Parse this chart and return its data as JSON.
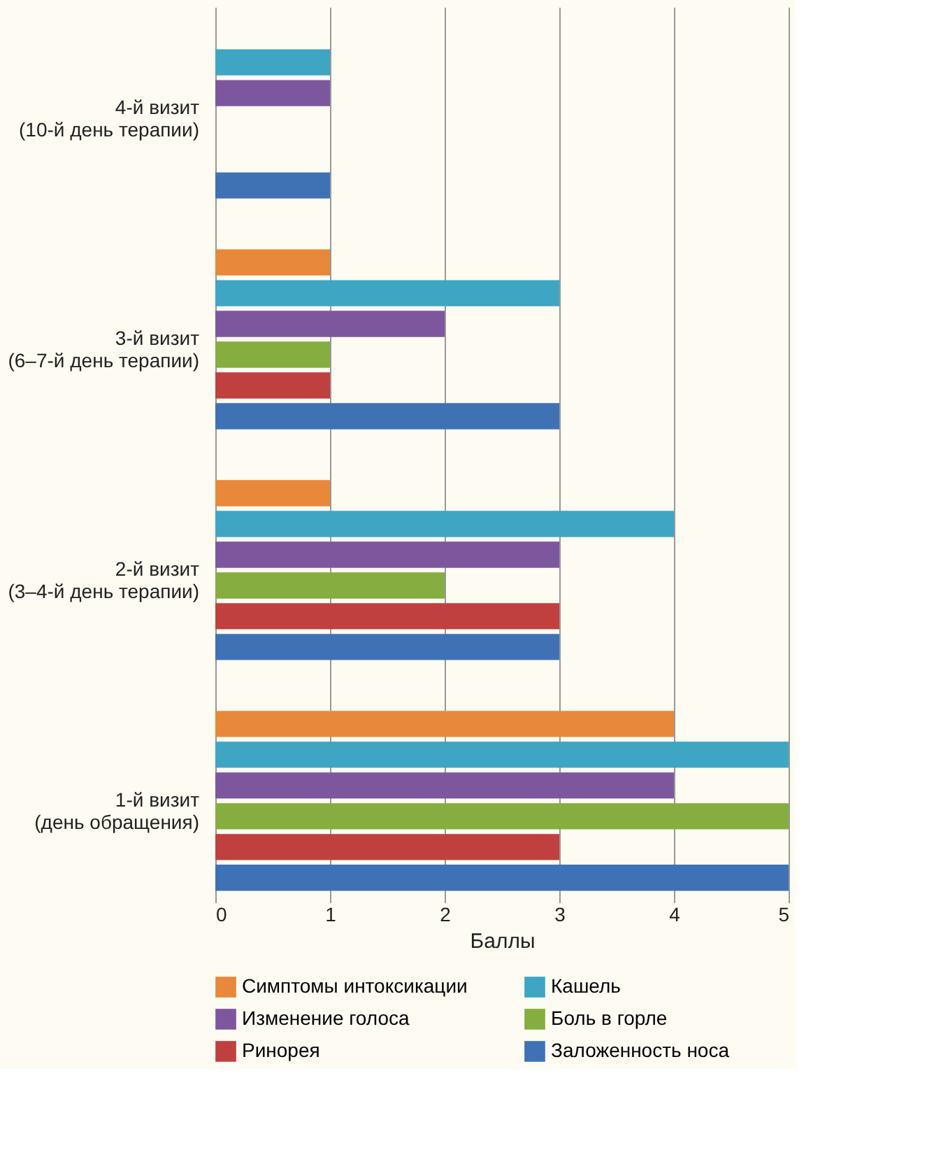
{
  "chart_data": {
    "type": "bar",
    "orientation": "horizontal",
    "xlabel": "Баллы",
    "categories": [
      "4-й визит\n(10-й день терапии)",
      "3-й визит\n(6–7-й день терапии)",
      "2-й визит\n(3–4-й день терапии)",
      "1-й визит\n(день обращения)"
    ],
    "series": [
      {
        "name": "Симптомы интоксикации",
        "color": "#e8883a",
        "values": [
          0,
          1,
          1,
          4
        ]
      },
      {
        "name": "Кашель",
        "color": "#3ea6c2",
        "values": [
          1,
          3,
          4,
          5
        ]
      },
      {
        "name": "Изменение голоса",
        "color": "#7d579e",
        "values": [
          1,
          2,
          3,
          4
        ]
      },
      {
        "name": "Боль в горле",
        "color": "#86ad3f",
        "values": [
          0,
          1,
          2,
          5
        ]
      },
      {
        "name": "Ринорея",
        "color": "#c0403f",
        "values": [
          0,
          1,
          3,
          3
        ]
      },
      {
        "name": "Заложенность носа",
        "color": "#3f72b5",
        "values": [
          1,
          3,
          3,
          5
        ]
      }
    ],
    "xlim": [
      0,
      5
    ],
    "xticks": [
      0,
      1,
      2,
      3,
      4,
      5
    ],
    "grid": "x",
    "legend": "bottom"
  }
}
